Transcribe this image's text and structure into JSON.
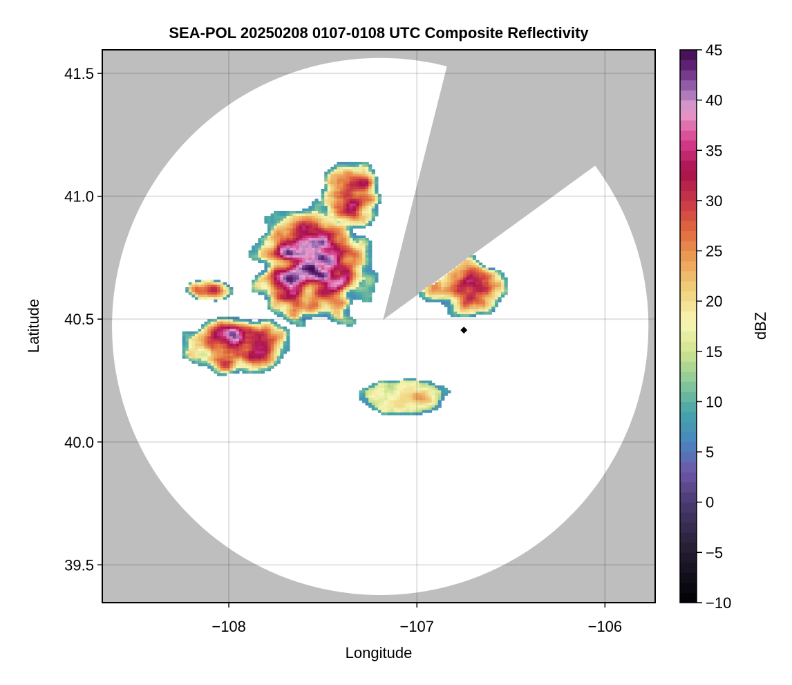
{
  "chart_data": {
    "type": "heatmap",
    "title": "SEA-POL 20250208 0107-0108 UTC Composite Reflectivity",
    "xlabel": "Longitude",
    "ylabel": "Latitude",
    "xlim": [
      -108.673,
      -105.733
    ],
    "ylim": [
      39.346,
      41.596
    ],
    "xticks": [
      -108,
      -107,
      -106
    ],
    "xtick_labels": [
      "−108",
      "−107",
      "−106"
    ],
    "yticks": [
      39.5,
      40.0,
      40.5,
      41.0,
      41.5
    ],
    "ytick_labels": [
      "39.5",
      "40.0",
      "40.5",
      "41.0",
      "41.5"
    ],
    "grid": true,
    "background_color": "#bebebe",
    "radar": {
      "center_lon": -107.18,
      "center_lat": 40.497,
      "range_circle_center_lon": -107.195,
      "range_circle_center_lat": 40.47,
      "range_circle_radius_deg_lat": 1.093,
      "blocked_sectors": [
        {
          "edge_a_lon": -106.84,
          "edge_a_lat": 41.53,
          "edge_b_lon": -106.06,
          "edge_b_lat": 41.12
        }
      ],
      "marker": {
        "lon": -106.75,
        "lat": 40.455,
        "shape": "diamond",
        "color": "#000000"
      }
    },
    "colorbar": {
      "label": "dBZ",
      "vmin": -10,
      "vmax": 45,
      "step": 1,
      "ticks": [
        -10,
        -5,
        0,
        5,
        10,
        15,
        20,
        25,
        30,
        35,
        40,
        45
      ],
      "tick_labels": [
        "−10",
        "−5",
        "0",
        "5",
        "10",
        "15",
        "20",
        "25",
        "30",
        "35",
        "40",
        "45"
      ],
      "colormap_stops": [
        [
          -10,
          "#000004"
        ],
        [
          -5,
          "#221c30"
        ],
        [
          0,
          "#4a3b70"
        ],
        [
          3,
          "#6e56a8"
        ],
        [
          6,
          "#4a86c0"
        ],
        [
          9,
          "#45a4a8"
        ],
        [
          12,
          "#8cc898"
        ],
        [
          15,
          "#d0e48e"
        ],
        [
          18,
          "#f8f6b6"
        ],
        [
          21,
          "#f0d27e"
        ],
        [
          24,
          "#eca25a"
        ],
        [
          27,
          "#e26a3e"
        ],
        [
          30,
          "#c83648"
        ],
        [
          33,
          "#a8104e"
        ],
        [
          36,
          "#d8408e"
        ],
        [
          39,
          "#e6a2d0"
        ],
        [
          41,
          "#9e6cb4"
        ],
        [
          43,
          "#6a2a7e"
        ],
        [
          45,
          "#3e0a4e"
        ]
      ]
    },
    "echo_regions": [
      {
        "name": "main-northwest-complex",
        "lon": -107.55,
        "lat": 40.72,
        "rx": 0.42,
        "ry": 0.32,
        "peak_dbz": 42
      },
      {
        "name": "northern-plume",
        "lon": -107.35,
        "lat": 41.0,
        "rx": 0.2,
        "ry": 0.2,
        "peak_dbz": 32
      },
      {
        "name": "western-bands",
        "lon": -107.95,
        "lat": 40.4,
        "rx": 0.38,
        "ry": 0.16,
        "peak_dbz": 40
      },
      {
        "name": "northwest-band",
        "lon": -108.1,
        "lat": 40.62,
        "rx": 0.16,
        "ry": 0.06,
        "peak_dbz": 32
      },
      {
        "name": "eastern-sector",
        "lon": -106.75,
        "lat": 40.63,
        "rx": 0.28,
        "ry": 0.16,
        "peak_dbz": 32
      },
      {
        "name": "southern-light-echoes",
        "lon": -107.05,
        "lat": 40.18,
        "rx": 0.3,
        "ry": 0.09,
        "peak_dbz": 18
      }
    ]
  }
}
